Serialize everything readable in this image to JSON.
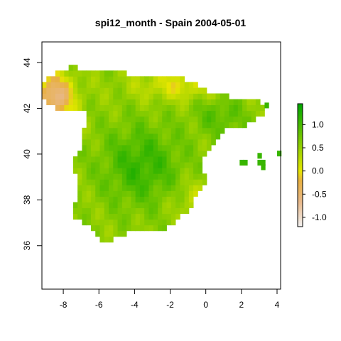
{
  "title": "spi12_month - Spain 2004-05-01",
  "x_ticks": [
    {
      "value": -8,
      "label": "-8"
    },
    {
      "value": -6,
      "label": "-6"
    },
    {
      "value": -4,
      "label": "-4"
    },
    {
      "value": -2,
      "label": "-2"
    },
    {
      "value": 0,
      "label": "0"
    },
    {
      "value": 2,
      "label": "2"
    },
    {
      "value": 4,
      "label": "4"
    }
  ],
  "y_ticks": [
    {
      "value": 36,
      "label": "36"
    },
    {
      "value": 38,
      "label": "38"
    },
    {
      "value": 40,
      "label": "40"
    },
    {
      "value": 42,
      "label": "42"
    },
    {
      "value": 44,
      "label": "44"
    }
  ],
  "legend_ticks": [
    {
      "value": 1.0,
      "label": "1.0"
    },
    {
      "value": 0.5,
      "label": "0.5"
    },
    {
      "value": 0.0,
      "label": "0.0"
    },
    {
      "value": -0.5,
      "label": "-0.5"
    },
    {
      "value": -1.0,
      "label": "-1.0"
    }
  ],
  "map": {
    "xlim": [
      -9.2,
      4.2
    ],
    "ylim": [
      34.1,
      44.9
    ],
    "value_range": [
      -1.2,
      1.45
    ],
    "colors": {
      "low": "#f2f2f2",
      "tan": "#e8b888",
      "orange": "#e8b040",
      "zero": "#e6e600",
      "high": "#00a600"
    }
  }
}
